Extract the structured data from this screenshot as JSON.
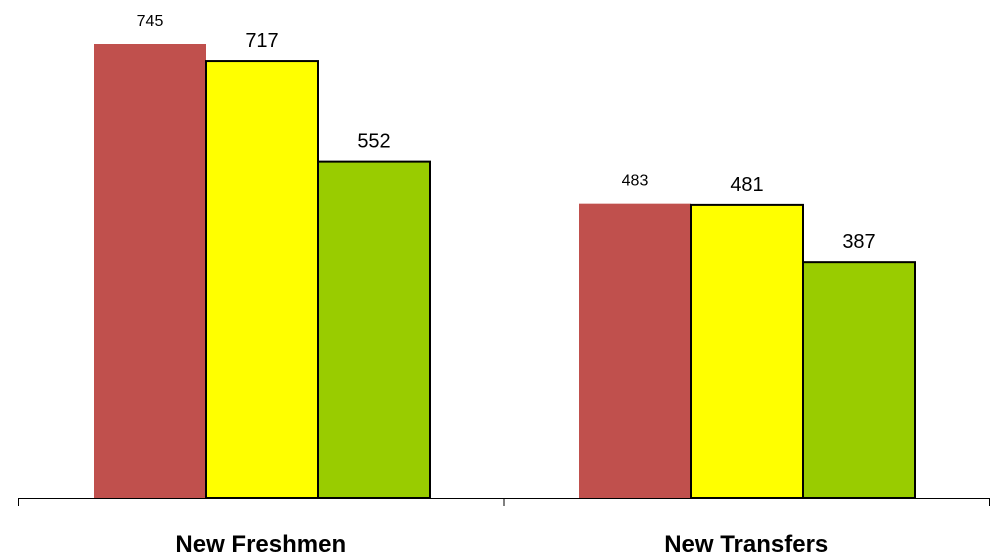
{
  "chart_data": {
    "type": "bar",
    "categories": [
      "New Freshmen",
      "New Transfers"
    ],
    "series": [
      {
        "values": [
          745,
          483
        ],
        "color": "#c0504d",
        "outlined": false
      },
      {
        "values": [
          717,
          481
        ],
        "color": "#ffff00",
        "outlined": true
      },
      {
        "values": [
          552,
          387
        ],
        "color": "#99cc00",
        "outlined": true
      }
    ],
    "data_labels": [
      [
        "745",
        "483"
      ],
      [
        "717",
        "481"
      ],
      [
        "552",
        "387"
      ]
    ],
    "ylim": [
      0,
      745
    ],
    "grid": false,
    "legend": "none"
  }
}
